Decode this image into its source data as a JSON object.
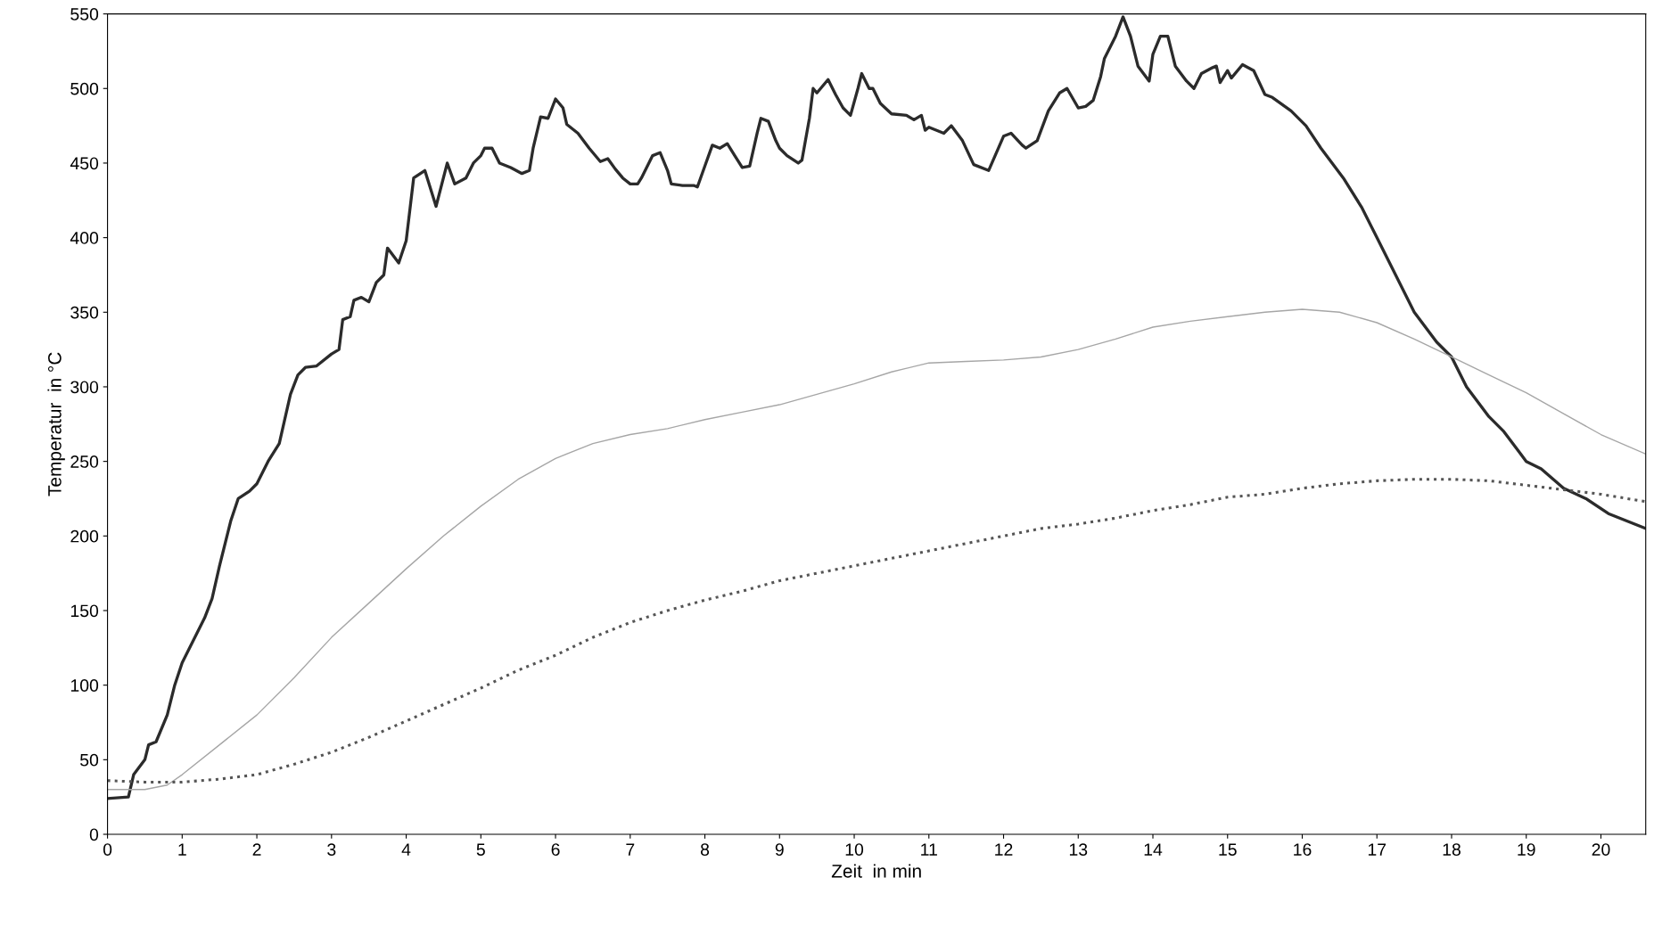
{
  "chart_data": {
    "type": "line",
    "xlabel": "Zeit  in min",
    "ylabel": "Temperatur  in °C",
    "xlim": [
      0,
      20.6
    ],
    "xticks": [
      0,
      1,
      2,
      3,
      4,
      5,
      6,
      7,
      8,
      9,
      10,
      11,
      12,
      13,
      14,
      15,
      16,
      17,
      18,
      19,
      20
    ],
    "ylim": [
      0,
      550
    ],
    "yticks": [
      0,
      50,
      100,
      150,
      200,
      250,
      300,
      350,
      400,
      450,
      500,
      550
    ],
    "grid": false,
    "legend": false,
    "marker": "none",
    "series": [
      {
        "color": "#2b2b2b",
        "line_style": "solid",
        "x": [
          0,
          0.28,
          0.35,
          0.5,
          0.55,
          0.65,
          0.8,
          0.9,
          1.0,
          1.2,
          1.3,
          1.4,
          1.5,
          1.65,
          1.75,
          1.9,
          2.0,
          2.15,
          2.3,
          2.45,
          2.55,
          2.65,
          2.8,
          3.0,
          3.1,
          3.15,
          3.25,
          3.3,
          3.4,
          3.5,
          3.6,
          3.7,
          3.75,
          3.9,
          4.0,
          4.1,
          4.25,
          4.4,
          4.55,
          4.65,
          4.8,
          4.9,
          5.0,
          5.05,
          5.15,
          5.25,
          5.4,
          5.55,
          5.65,
          5.7,
          5.8,
          5.9,
          6.0,
          6.1,
          6.15,
          6.3,
          6.45,
          6.6,
          6.7,
          6.8,
          6.9,
          7.0,
          7.1,
          7.15,
          7.3,
          7.4,
          7.5,
          7.55,
          7.7,
          7.85,
          7.9,
          8.0,
          8.1,
          8.2,
          8.3,
          8.4,
          8.5,
          8.6,
          8.7,
          8.75,
          8.85,
          8.95,
          9.0,
          9.1,
          9.25,
          9.3,
          9.4,
          9.45,
          9.5,
          9.65,
          9.75,
          9.85,
          9.95,
          10.05,
          10.1,
          10.2,
          10.25,
          10.35,
          10.5,
          10.7,
          10.8,
          10.9,
          10.95,
          11.0,
          11.2,
          11.3,
          11.45,
          11.6,
          11.8,
          12.0,
          12.1,
          12.25,
          12.3,
          12.45,
          12.6,
          12.75,
          12.85,
          13.0,
          13.1,
          13.2,
          13.3,
          13.35,
          13.5,
          13.6,
          13.7,
          13.8,
          13.95,
          14.0,
          14.1,
          14.2,
          14.3,
          14.45,
          14.55,
          14.65,
          14.8,
          14.85,
          14.9,
          15.0,
          15.05,
          15.2,
          15.35,
          15.5,
          15.6,
          15.85,
          16.05,
          16.25,
          16.55,
          16.8,
          17.0,
          17.3,
          17.5,
          17.8,
          18.0,
          18.2,
          18.5,
          18.7,
          19.0,
          19.2,
          19.5,
          19.8,
          20.1,
          20.6
        ],
        "values": [
          24,
          25,
          40,
          50,
          60,
          62,
          80,
          100,
          115,
          135,
          145,
          158,
          180,
          210,
          225,
          230,
          235,
          250,
          262,
          295,
          308,
          313,
          314,
          322,
          325,
          345,
          347,
          358,
          360,
          357,
          370,
          375,
          393,
          383,
          398,
          440,
          445,
          421,
          450,
          436,
          440,
          450,
          455,
          460,
          460,
          450,
          447,
          443,
          445,
          460,
          481,
          480,
          493,
          487,
          476,
          470,
          460,
          451,
          453,
          446,
          440,
          436,
          436,
          440,
          455,
          457,
          445,
          436,
          435,
          435,
          434,
          448,
          462,
          460,
          463,
          455,
          447,
          448,
          470,
          480,
          478,
          465,
          460,
          455,
          450,
          452,
          480,
          500,
          497,
          506,
          496,
          487,
          482,
          500,
          510,
          500,
          500,
          490,
          483,
          482,
          479,
          482,
          472,
          474,
          470,
          475,
          465,
          449,
          445,
          468,
          470,
          462,
          460,
          465,
          485,
          497,
          500,
          487,
          488,
          492,
          508,
          520,
          535,
          548,
          535,
          515,
          505,
          523,
          535,
          535,
          515,
          505,
          500,
          510,
          514,
          515,
          504,
          512,
          507,
          516,
          512,
          496,
          494,
          485,
          475,
          460,
          440,
          420,
          400,
          370,
          350,
          330,
          320,
          300,
          280,
          270,
          250,
          245,
          232,
          225,
          215,
          205
        ]
      },
      {
        "color": "#a6a6a6",
        "line_style": "solid",
        "x": [
          0,
          0.5,
          0.8,
          1.0,
          1.5,
          2,
          2.5,
          3,
          3.5,
          4,
          4.5,
          5,
          5.5,
          6,
          6.5,
          7,
          7.5,
          8,
          8.5,
          9,
          9.5,
          10,
          10.5,
          11,
          11.5,
          12,
          12.5,
          13,
          13.5,
          14,
          14.5,
          15,
          15.5,
          16,
          16.5,
          17,
          17.5,
          18,
          18.5,
          19,
          19.5,
          20,
          20.6
        ],
        "values": [
          30,
          30,
          33,
          40,
          60,
          80,
          105,
          132,
          155,
          178,
          200,
          220,
          238,
          252,
          262,
          268,
          272,
          278,
          283,
          288,
          295,
          302,
          310,
          316,
          317,
          318,
          320,
          325,
          332,
          340,
          344,
          347,
          350,
          352,
          350,
          343,
          332,
          320,
          308,
          296,
          282,
          268,
          255
        ]
      },
      {
        "color": "#555555",
        "line_style": "dotted",
        "x": [
          0,
          0.5,
          1,
          1.5,
          2,
          2.5,
          3,
          3.5,
          4,
          4.5,
          5,
          5.5,
          6,
          6.5,
          7,
          7.5,
          8,
          8.5,
          9,
          9.5,
          10,
          10.5,
          11,
          11.5,
          12,
          12.5,
          13,
          13.5,
          14,
          14.5,
          15,
          15.5,
          16,
          16.5,
          17,
          17.5,
          18,
          18.5,
          19,
          19.5,
          20,
          20.6
        ],
        "values": [
          36,
          35,
          35,
          37,
          40,
          47,
          55,
          65,
          76,
          87,
          98,
          110,
          120,
          132,
          142,
          150,
          157,
          163,
          170,
          175,
          180,
          185,
          190,
          195,
          200,
          205,
          208,
          212,
          217,
          221,
          226,
          228,
          232,
          235,
          237,
          238,
          238,
          237,
          234,
          231,
          228,
          223
        ]
      }
    ]
  }
}
